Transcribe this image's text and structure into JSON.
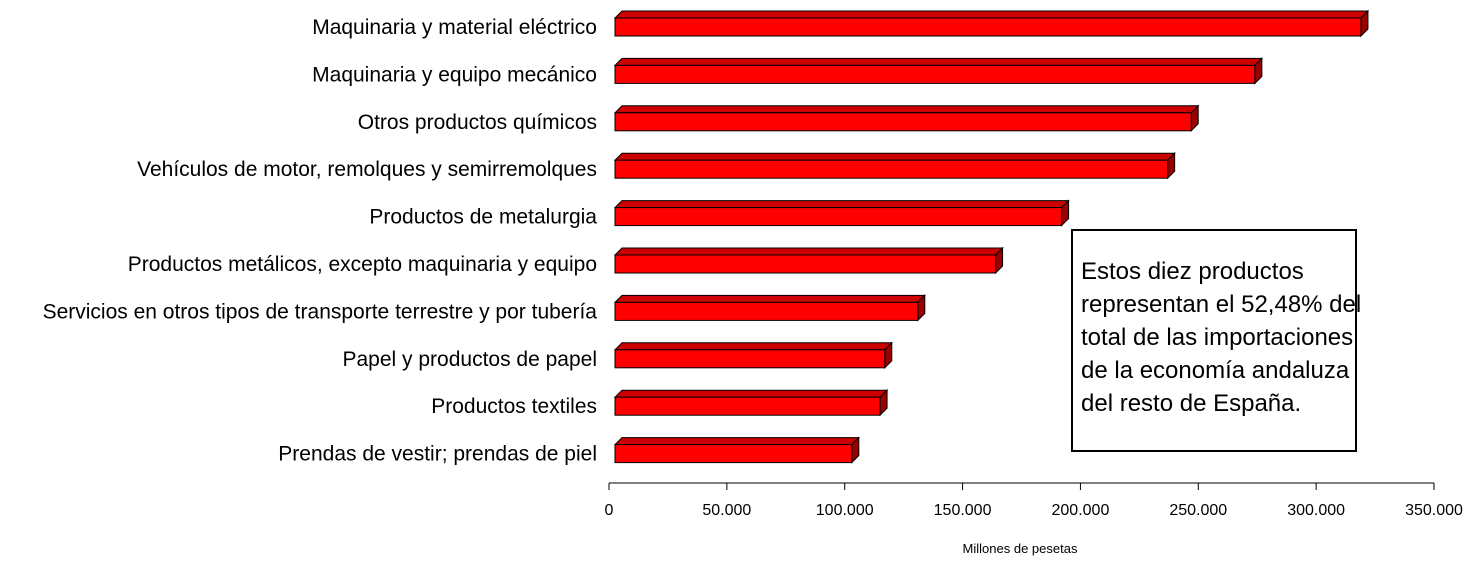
{
  "chart_data": {
    "type": "bar",
    "orientation": "horizontal",
    "categories": [
      "Maquinaria y material eléctrico",
      "Maquinaria y equipo mecánico",
      "Otros productos químicos",
      "Vehículos de motor, remolques y semirremolques",
      "Productos de metalurgia",
      "Productos metálicos, excepto maquinaria y equipo",
      "Servicios en otros tipos de transporte terrestre y por tubería",
      "Papel y productos de papel",
      "Productos textiles",
      "Prendas de vestir; prendas de piel"
    ],
    "values": [
      319000,
      274000,
      247000,
      237000,
      192000,
      164000,
      131000,
      117000,
      115000,
      103000
    ],
    "xlabel": "Millones de pesetas",
    "xlim": [
      0,
      350000
    ],
    "xticks": [
      0,
      50000,
      100000,
      150000,
      200000,
      250000,
      300000,
      350000
    ],
    "xtick_labels": [
      "0",
      "50.000",
      "100.000",
      "150.000",
      "200.000",
      "250.000",
      "300.000",
      "350.000"
    ],
    "bar_color": "#ff0000",
    "bar_top_color": "#cc0000",
    "bar_side_color": "#990000",
    "grid": false,
    "annotation": [
      "Estos diez productos",
      "representan el 52,48% del",
      "total de las importaciones",
      "de la economía andaluza",
      "del resto de España."
    ]
  }
}
